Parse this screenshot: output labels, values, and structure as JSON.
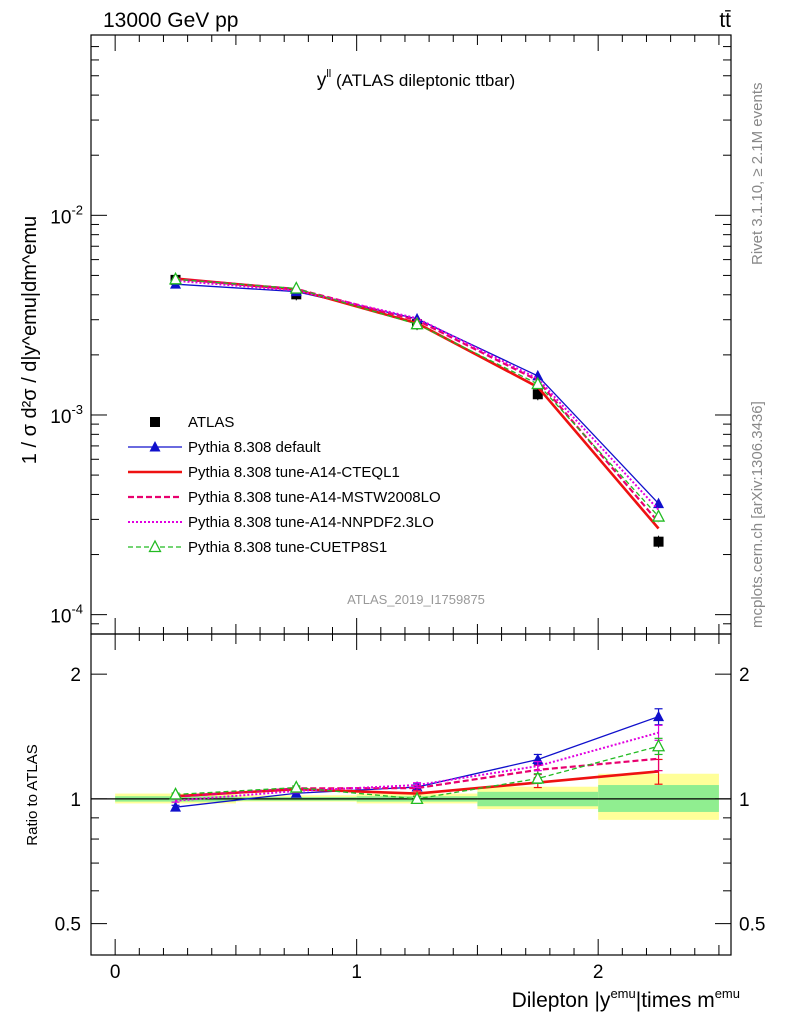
{
  "header": {
    "process_label": "13000 GeV pp",
    "top_right_label": "tt̄",
    "side_note_rivet": "Rivet 3.1.10, ≥ 2.1M events",
    "side_note_site": "mcplots.cern.ch [arXiv:1306.3436]",
    "analysis_id": "ATLAS_2019_I1759875"
  },
  "chart_data": [
    {
      "panel": "main",
      "type": "line",
      "title": "y^{ll} (ATLAS dileptonic ttbar)",
      "title_main": "y",
      "title_sup": "ll",
      "title_rest": " (ATLAS dileptonic ttbar)",
      "ylabel": "1 / σ d²σ / d|y^emu|dm^emu",
      "yscale": "log",
      "ylim": [
        8e-05,
        0.08
      ],
      "xlim": [
        -0.1,
        2.55
      ],
      "y_ticks": [
        {
          "value": 0.01,
          "label": "10",
          "exp": "-2"
        },
        {
          "value": 0.001,
          "label": "10",
          "exp": "-3"
        },
        {
          "value": 0.0001,
          "label": "10",
          "exp": "-4"
        }
      ],
      "x": [
        0.25,
        0.75,
        1.25,
        1.75,
        2.25
      ],
      "series": [
        {
          "name": "ATLAS",
          "color": "#000000",
          "style": "data",
          "values": [
            0.00475,
            0.00402,
            0.00285,
            0.00127,
            0.000232
          ]
        },
        {
          "name": "Pythia 8.308 default",
          "color": "#1010cc",
          "style": "solid-triangle",
          "values": [
            0.00452,
            0.00415,
            0.00303,
            0.00157,
            0.00036
          ]
        },
        {
          "name": "Pythia 8.308 tune-A14-CTEQL1",
          "color": "#ee1111",
          "style": "thick-solid",
          "values": [
            0.00482,
            0.00425,
            0.00288,
            0.00138,
            0.00027
          ]
        },
        {
          "name": "Pythia 8.308 tune-A14-MSTW2008LO",
          "color": "#e8006e",
          "style": "dashed",
          "values": [
            0.0048,
            0.00428,
            0.00298,
            0.00149,
            0.00029
          ]
        },
        {
          "name": "Pythia 8.308 tune-A14-NNPDF2.3LO",
          "color": "#e000e0",
          "style": "dotted",
          "values": [
            0.0047,
            0.0042,
            0.00305,
            0.00152,
            0.000335
          ]
        },
        {
          "name": "Pythia 8.308 tune-CUETP8S1",
          "color": "#22bb22",
          "style": "dashed-open-triangle",
          "values": [
            0.00478,
            0.0043,
            0.00285,
            0.00143,
            0.00031
          ]
        }
      ],
      "legend_position": "lower-left"
    },
    {
      "panel": "ratio",
      "type": "line",
      "ylabel": "Ratio to ATLAS",
      "yscale": "log",
      "ylim": [
        0.42,
        2.5
      ],
      "y_ticks": [
        {
          "value": 2,
          "label": "2"
        },
        {
          "value": 1,
          "label": "1"
        },
        {
          "value": 0.5,
          "label": "0.5"
        }
      ],
      "xlabel": "Dilepton |y^emu|times m^emu",
      "xlabel_parts": [
        "Dilepton |y",
        "emu",
        "|times m",
        "emu"
      ],
      "x_ticks": [
        {
          "value": 0,
          "label": "0"
        },
        {
          "value": 1,
          "label": "1"
        },
        {
          "value": 2,
          "label": "2"
        }
      ],
      "bins": [
        [
          0,
          0.5
        ],
        [
          0.5,
          1.0
        ],
        [
          1.0,
          1.5
        ],
        [
          1.5,
          2.0
        ],
        [
          2.0,
          2.5
        ]
      ],
      "band_inner": [
        [
          0.985,
          1.015
        ],
        [
          0.99,
          1.01
        ],
        [
          0.985,
          1.015
        ],
        [
          0.96,
          1.04
        ],
        [
          0.93,
          1.08
        ]
      ],
      "band_outer": [
        [
          0.975,
          1.03
        ],
        [
          0.985,
          1.02
        ],
        [
          0.975,
          1.03
        ],
        [
          0.945,
          1.07
        ],
        [
          0.89,
          1.15
        ]
      ],
      "x": [
        0.25,
        0.75,
        1.25,
        1.75,
        2.25
      ],
      "series": [
        {
          "name": "Pythia 8.308 default",
          "values": [
            0.955,
            1.032,
            1.068,
            1.245,
            1.58
          ],
          "errors": [
            0.01,
            0.012,
            0.018,
            0.035,
            0.07
          ]
        },
        {
          "name": "Pythia 8.308 tune-A14-CTEQL1",
          "values": [
            1.015,
            1.055,
            1.03,
            1.095,
            1.165
          ],
          "errors": [
            0.008,
            0.01,
            0.014,
            0.03,
            0.08
          ]
        },
        {
          "name": "Pythia 8.308 tune-A14-MSTW2008LO",
          "values": [
            1.012,
            1.06,
            1.062,
            1.175,
            1.25
          ],
          "errors": [
            0.008,
            0.01,
            0.014,
            0.03,
            0.08
          ]
        },
        {
          "name": "Pythia 8.308 tune-A14-NNPDF2.3LO",
          "values": [
            0.99,
            1.045,
            1.08,
            1.2,
            1.445
          ],
          "errors": [
            0.008,
            0.01,
            0.014,
            0.03,
            0.06
          ]
        },
        {
          "name": "Pythia 8.308 tune-CUETP8S1",
          "values": [
            1.025,
            1.065,
            1.0,
            1.12,
            1.34
          ],
          "errors": [
            0.008,
            0.01,
            0.014,
            0.03,
            0.06
          ]
        }
      ]
    }
  ]
}
